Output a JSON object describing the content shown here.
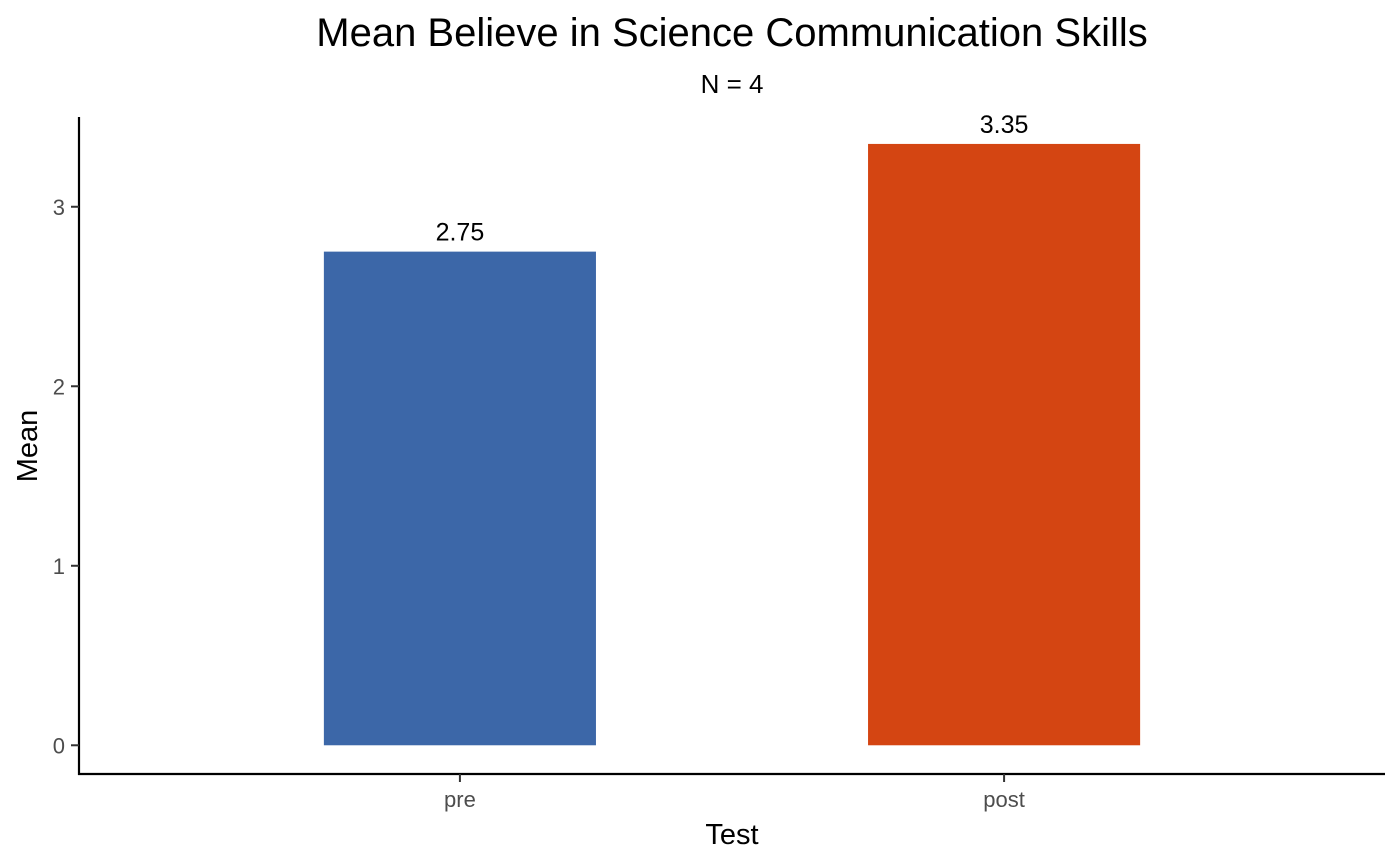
{
  "chart_data": {
    "type": "bar",
    "title": "Mean Believe in Science Communication Skills",
    "subtitle": "N = 4",
    "xlabel": "Test",
    "ylabel": "Mean",
    "categories": [
      "pre",
      "post"
    ],
    "values": [
      2.75,
      3.35
    ],
    "value_labels": [
      "2.75",
      "3.35"
    ],
    "bar_colors": [
      "#3C67A8",
      "#D44512"
    ],
    "ylim": [
      -0.16,
      3.5
    ],
    "yticks": [
      0,
      1,
      2,
      3
    ],
    "ytick_labels": [
      "0",
      "1",
      "2",
      "3"
    ],
    "grid": false,
    "legend": "none"
  }
}
